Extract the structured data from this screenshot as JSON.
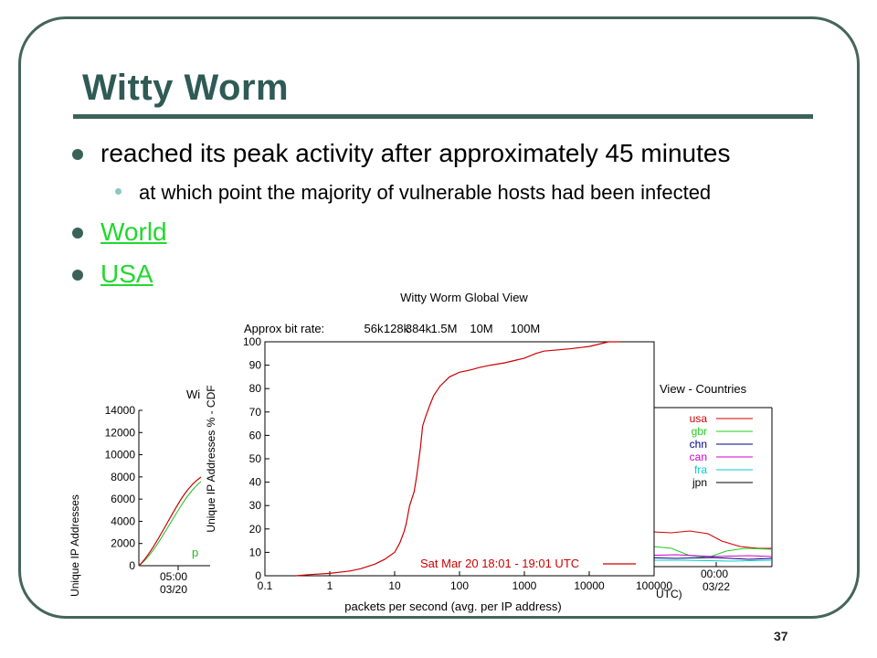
{
  "slide": {
    "title": "Witty Worm",
    "bullets": [
      {
        "text": "reached its peak activity after approximately 45 minutes"
      },
      {
        "text": "World",
        "link": true
      },
      {
        "text": "USA",
        "link": true
      }
    ],
    "sub_bullets": [
      "at which point the majority of vulnerable hosts had been infected"
    ],
    "page_number": "37"
  },
  "colors": {
    "frame": "#45655a",
    "title": "#2f5a55",
    "link": "#22d82f",
    "curve": "#cc0000"
  },
  "charts": {
    "back_left": {
      "title_fragment": "Wi",
      "ylabel": "Unique IP Addresses",
      "yticks": [
        "14000",
        "12000",
        "10000",
        "8000",
        "6000",
        "4000",
        "2000",
        "0"
      ],
      "xtick": "05:00",
      "xtick_date": "03/20",
      "legend_fragment": "p"
    },
    "back_right": {
      "title_fragment": "View - Countries",
      "legend": [
        {
          "label": "usa",
          "color": "#cc0000"
        },
        {
          "label": "gbr",
          "color": "#22cc22"
        },
        {
          "label": "chn",
          "color": "#000080"
        },
        {
          "label": "can",
          "color": "#cc00cc"
        },
        {
          "label": "fra",
          "color": "#00cccc"
        },
        {
          "label": "jpn",
          "color": "#000000"
        }
      ],
      "xtick": "00:00",
      "xtick_date": "03/22",
      "xlabel_fragment": "UTC)"
    },
    "main": {
      "title": "Witty Worm Global View",
      "bitrate_label": "Approx bit rate:",
      "bitrate_ticks": [
        "56k",
        "128k",
        "384k",
        "1.5M",
        "10M",
        "100M"
      ],
      "ylabel": "Unique IP Addresses % - CDF",
      "xlabel": "packets per second (avg. per IP address)",
      "legend_label": "Sat Mar 20 18:01 - 19:01 UTC",
      "yticks": [
        "0",
        "10",
        "20",
        "30",
        "40",
        "50",
        "60",
        "70",
        "80",
        "90",
        "100"
      ],
      "xticks": [
        "0.1",
        "1",
        "10",
        "100",
        "1000",
        "10000",
        "100000"
      ]
    }
  },
  "chart_data": {
    "type": "line",
    "title": "Witty Worm Global View",
    "xlabel": "packets per second (avg. per IP address)",
    "ylabel": "Unique IP Addresses % - CDF",
    "xscale": "log",
    "xlim": [
      0.1,
      100000
    ],
    "ylim": [
      0,
      100
    ],
    "grid": false,
    "legend_position": "bottom-right",
    "series": [
      {
        "name": "Sat Mar 20 18:01 - 19:01 UTC",
        "x": [
          0.3,
          0.5,
          1,
          2,
          3,
          5,
          7,
          10,
          12,
          14,
          15,
          17,
          20,
          22,
          25,
          27,
          30,
          35,
          40,
          50,
          70,
          100,
          150,
          200,
          300,
          500,
          700,
          1000,
          1500,
          2000,
          5000,
          10000,
          20000,
          30000
        ],
        "y": [
          0,
          0.5,
          1,
          2,
          3,
          5,
          7,
          10,
          14,
          19,
          22,
          30,
          36,
          43,
          55,
          64,
          68,
          73,
          77,
          81,
          85,
          87,
          88,
          89,
          90,
          91,
          92,
          93,
          95,
          96,
          97,
          98,
          100,
          100
        ]
      }
    ]
  }
}
